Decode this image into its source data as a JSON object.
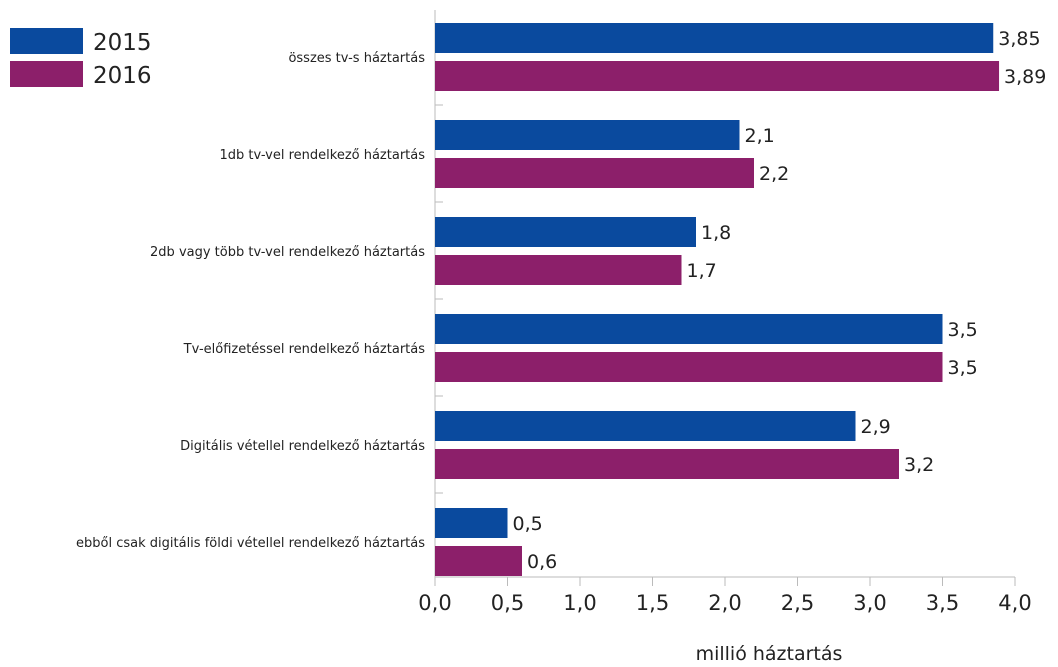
{
  "chart_data": {
    "type": "bar",
    "orientation": "horizontal",
    "categories": [
      "összes tv-s háztartás",
      "1db tv-vel rendelkező háztartás",
      "2db vagy több tv-vel rendelkező háztartás",
      "Tv-előfizetéssel rendelkező háztartás",
      "Digitális vétellel rendelkező háztartás",
      "ebből csak digitális földi vétellel rendelkező háztartás"
    ],
    "series": [
      {
        "name": "2015",
        "color": "#0a4a9e",
        "values": [
          3.85,
          2.1,
          1.8,
          3.5,
          2.9,
          0.5
        ],
        "labels": [
          "3,85",
          "2,1",
          "1,8",
          "3,5",
          "2,9",
          "0,5"
        ]
      },
      {
        "name": "2016",
        "color": "#8c1f6a",
        "values": [
          3.89,
          2.2,
          1.7,
          3.5,
          3.2,
          0.6
        ],
        "labels": [
          "3,89",
          "2,2",
          "1,7",
          "3,5",
          "3,2",
          "0,6"
        ]
      }
    ],
    "xlim": [
      0,
      4.0
    ],
    "x_ticks": [
      0,
      0.5,
      1.0,
      1.5,
      2.0,
      2.5,
      3.0,
      3.5,
      4.0
    ],
    "x_tick_labels": [
      "0,0",
      "0,5",
      "1,0",
      "1,5",
      "2,0",
      "2,5",
      "3,0",
      "3,5",
      "4,0"
    ],
    "xlabel": "millió háztartás",
    "ylabel": "",
    "title": "",
    "grid": false,
    "legend_position": "top-left"
  }
}
